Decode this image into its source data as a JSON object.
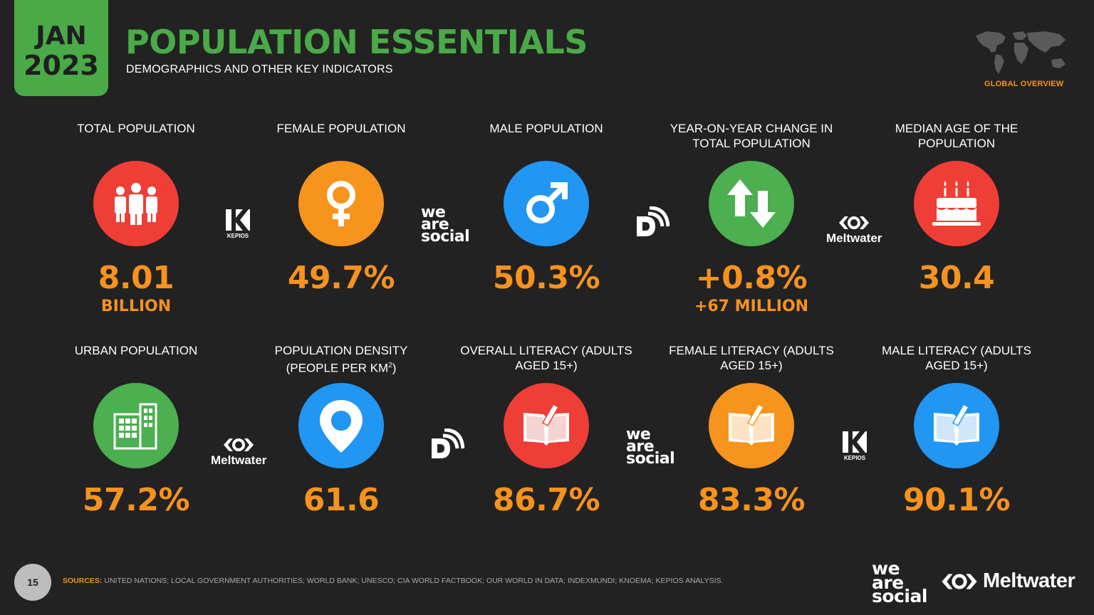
{
  "header": {
    "month": "JAN",
    "year": "2023",
    "title": "POPULATION ESSENTIALS",
    "subtitle": "DEMOGRAPHICS AND OTHER KEY INDICATORS",
    "global_label": "GLOBAL OVERVIEW"
  },
  "stats": [
    {
      "label": "TOTAL POPULATION",
      "value": "8.01",
      "sub": "BILLION",
      "icon": "people-icon",
      "color": "#ef3e36"
    },
    {
      "label": "FEMALE POPULATION",
      "value": "49.7%",
      "sub": "",
      "icon": "female-icon",
      "color": "#f7941d"
    },
    {
      "label": "MALE POPULATION",
      "value": "50.3%",
      "sub": "",
      "icon": "male-icon",
      "color": "#2196f3"
    },
    {
      "label": "YEAR-ON-YEAR CHANGE IN TOTAL POPULATION",
      "value": "+0.8%",
      "sub": "+67 MILLION",
      "icon": "up-down-arrows-icon",
      "color": "#4caf50"
    },
    {
      "label": "MEDIAN AGE OF THE POPULATION",
      "value": "30.4",
      "sub": "",
      "icon": "birthday-cake-icon",
      "color": "#ef3e36"
    },
    {
      "label": "URBAN POPULATION",
      "value": "57.2%",
      "sub": "",
      "icon": "building-icon",
      "color": "#4caf50"
    },
    {
      "label": "POPULATION DENSITY",
      "label_line2": "(PEOPLE PER KM",
      "label_sup": "2",
      "label_end": ")",
      "value": "61.6",
      "sub": "",
      "icon": "map-pin-icon",
      "color": "#2196f3"
    },
    {
      "label": "OVERALL LITERACY (ADULTS AGED 15+)",
      "value": "86.7%",
      "sub": "",
      "icon": "book-icon",
      "color": "#ef3e36"
    },
    {
      "label": "FEMALE LITERACY (ADULTS AGED 15+)",
      "value": "83.3%",
      "sub": "",
      "icon": "book-icon",
      "color": "#f7941d"
    },
    {
      "label": "MALE LITERACY (ADULTS AGED 15+)",
      "value": "90.1%",
      "sub": "",
      "icon": "book-icon",
      "color": "#2196f3"
    }
  ],
  "logos": {
    "kepios": "KEPIOS",
    "was_line1": "we",
    "was_line2": "are",
    "was_line3": "social",
    "meltwater": "Meltwater"
  },
  "footer": {
    "page_number": "15",
    "sources_label": "SOURCES:",
    "sources_text": "UNITED NATIONS; LOCAL GOVERNMENT AUTHORITIES; WORLD BANK; UNESCO; CIA WORLD FACTBOOK; OUR WORLD IN DATA; INDEXMUNDI; KNOEMA; KEPIOS ANALYSIS.",
    "brand1": "we are social",
    "brand2": "Meltwater"
  }
}
